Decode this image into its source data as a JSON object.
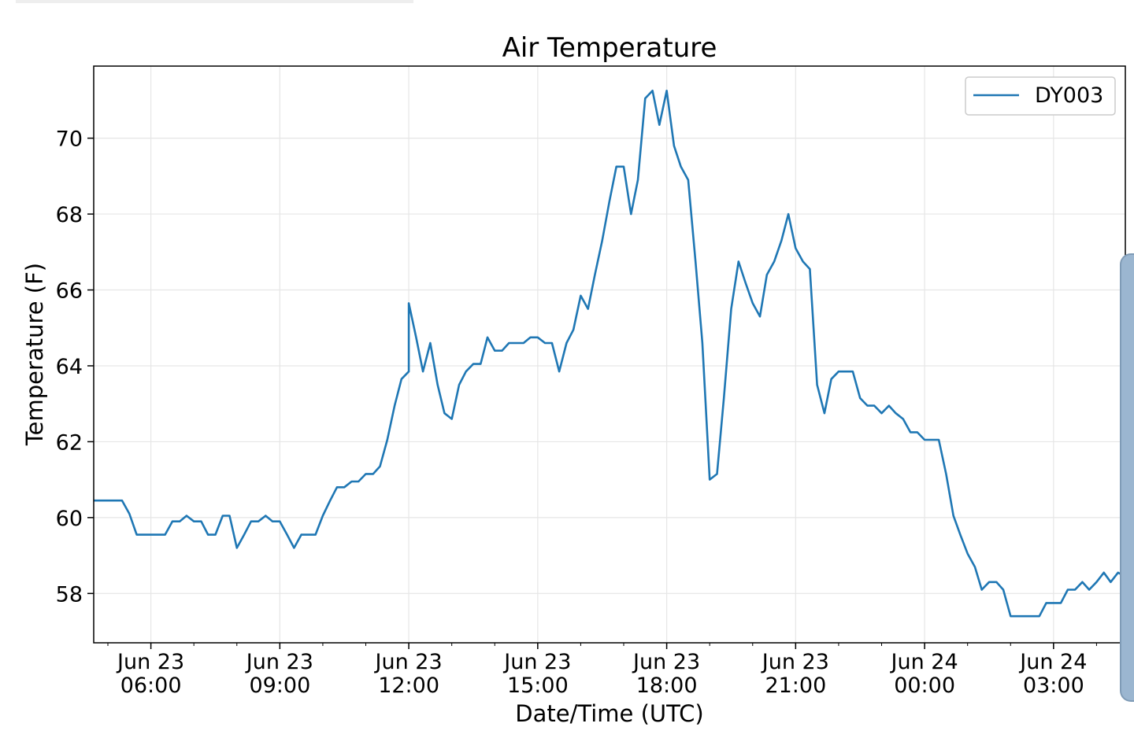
{
  "chart_data": {
    "type": "line",
    "title": "Air Temperature",
    "xlabel": "Date/Time (UTC)",
    "ylabel": "Temperature (F)",
    "ylim": [
      56.7,
      71.9
    ],
    "xlim_hours": [
      4.67,
      28.67
    ],
    "grid": true,
    "legend_position": "top-right",
    "y_ticks": [
      58,
      60,
      62,
      64,
      66,
      68,
      70
    ],
    "x_ticks": [
      {
        "hour": 6,
        "line1": "Jun 23",
        "line2": "06:00"
      },
      {
        "hour": 9,
        "line1": "Jun 23",
        "line2": "09:00"
      },
      {
        "hour": 12,
        "line1": "Jun 23",
        "line2": "12:00"
      },
      {
        "hour": 15,
        "line1": "Jun 23",
        "line2": "15:00"
      },
      {
        "hour": 18,
        "line1": "Jun 23",
        "line2": "18:00"
      },
      {
        "hour": 21,
        "line1": "Jun 23",
        "line2": "21:00"
      },
      {
        "hour": 24,
        "line1": "Jun 24",
        "line2": "00:00"
      },
      {
        "hour": 27,
        "line1": "Jun 24",
        "line2": "03:00"
      }
    ],
    "series": [
      {
        "name": "DY003",
        "color": "#1f77b4",
        "points": [
          [
            4.67,
            60.45
          ],
          [
            5.33,
            60.45
          ],
          [
            5.5,
            60.1
          ],
          [
            5.67,
            59.55
          ],
          [
            6.17,
            59.55
          ],
          [
            6.33,
            59.55
          ],
          [
            6.5,
            59.9
          ],
          [
            6.67,
            59.9
          ],
          [
            6.83,
            60.05
          ],
          [
            7.0,
            59.9
          ],
          [
            7.17,
            59.9
          ],
          [
            7.33,
            59.55
          ],
          [
            7.5,
            59.55
          ],
          [
            7.67,
            60.05
          ],
          [
            7.83,
            60.05
          ],
          [
            8.0,
            59.2
          ],
          [
            8.17,
            59.55
          ],
          [
            8.33,
            59.9
          ],
          [
            8.5,
            59.9
          ],
          [
            8.67,
            60.05
          ],
          [
            8.83,
            59.9
          ],
          [
            9.0,
            59.9
          ],
          [
            9.17,
            59.55
          ],
          [
            9.33,
            59.2
          ],
          [
            9.5,
            59.55
          ],
          [
            9.67,
            59.55
          ],
          [
            9.83,
            59.55
          ],
          [
            10.0,
            60.05
          ],
          [
            10.17,
            60.45
          ],
          [
            10.33,
            60.8
          ],
          [
            10.5,
            60.8
          ],
          [
            10.67,
            60.95
          ],
          [
            10.83,
            60.95
          ],
          [
            11.0,
            61.15
          ],
          [
            11.17,
            61.15
          ],
          [
            11.33,
            61.35
          ],
          [
            11.5,
            62.05
          ],
          [
            11.67,
            62.95
          ],
          [
            11.83,
            63.65
          ],
          [
            12.0,
            63.85
          ],
          [
            12.0,
            65.65
          ],
          [
            12.17,
            64.75
          ],
          [
            12.33,
            63.85
          ],
          [
            12.5,
            64.6
          ],
          [
            12.67,
            63.5
          ],
          [
            12.83,
            62.75
          ],
          [
            13.0,
            62.6
          ],
          [
            13.17,
            63.5
          ],
          [
            13.33,
            63.85
          ],
          [
            13.5,
            64.05
          ],
          [
            13.67,
            64.05
          ],
          [
            13.83,
            64.75
          ],
          [
            14.0,
            64.4
          ],
          [
            14.17,
            64.4
          ],
          [
            14.33,
            64.6
          ],
          [
            14.5,
            64.6
          ],
          [
            14.67,
            64.6
          ],
          [
            14.83,
            64.75
          ],
          [
            15.0,
            64.75
          ],
          [
            15.17,
            64.6
          ],
          [
            15.33,
            64.6
          ],
          [
            15.5,
            63.85
          ],
          [
            15.67,
            64.6
          ],
          [
            15.83,
            64.95
          ],
          [
            16.0,
            65.85
          ],
          [
            16.17,
            65.5
          ],
          [
            16.33,
            66.4
          ],
          [
            16.5,
            67.3
          ],
          [
            16.67,
            68.35
          ],
          [
            16.83,
            69.25
          ],
          [
            17.0,
            69.25
          ],
          [
            17.17,
            68.0
          ],
          [
            17.33,
            68.9
          ],
          [
            17.5,
            71.05
          ],
          [
            17.67,
            71.25
          ],
          [
            17.83,
            70.35
          ],
          [
            18.0,
            71.25
          ],
          [
            18.17,
            69.8
          ],
          [
            18.33,
            69.25
          ],
          [
            18.5,
            68.9
          ],
          [
            18.67,
            66.75
          ],
          [
            18.83,
            64.6
          ],
          [
            19.0,
            61.0
          ],
          [
            19.17,
            61.15
          ],
          [
            19.33,
            63.15
          ],
          [
            19.5,
            65.5
          ],
          [
            19.67,
            66.75
          ],
          [
            19.83,
            66.2
          ],
          [
            20.0,
            65.65
          ],
          [
            20.17,
            65.3
          ],
          [
            20.33,
            66.4
          ],
          [
            20.5,
            66.75
          ],
          [
            20.67,
            67.3
          ],
          [
            20.83,
            68.0
          ],
          [
            21.0,
            67.1
          ],
          [
            21.17,
            66.75
          ],
          [
            21.33,
            66.55
          ],
          [
            21.5,
            63.5
          ],
          [
            21.67,
            62.75
          ],
          [
            21.83,
            63.65
          ],
          [
            22.0,
            63.85
          ],
          [
            22.17,
            63.85
          ],
          [
            22.33,
            63.85
          ],
          [
            22.5,
            63.15
          ],
          [
            22.67,
            62.95
          ],
          [
            22.83,
            62.95
          ],
          [
            23.0,
            62.75
          ],
          [
            23.17,
            62.95
          ],
          [
            23.33,
            62.75
          ],
          [
            23.5,
            62.6
          ],
          [
            23.67,
            62.25
          ],
          [
            23.83,
            62.25
          ],
          [
            24.0,
            62.05
          ],
          [
            24.17,
            62.05
          ],
          [
            24.33,
            62.05
          ],
          [
            24.5,
            61.15
          ],
          [
            24.67,
            60.05
          ],
          [
            24.83,
            59.55
          ],
          [
            25.0,
            59.05
          ],
          [
            25.17,
            58.7
          ],
          [
            25.33,
            58.1
          ],
          [
            25.5,
            58.3
          ],
          [
            25.67,
            58.3
          ],
          [
            25.83,
            58.1
          ],
          [
            26.0,
            57.4
          ],
          [
            26.17,
            57.4
          ],
          [
            26.33,
            57.4
          ],
          [
            26.5,
            57.4
          ],
          [
            26.67,
            57.4
          ],
          [
            26.83,
            57.75
          ],
          [
            27.0,
            57.75
          ],
          [
            27.17,
            57.75
          ],
          [
            27.33,
            58.1
          ],
          [
            27.5,
            58.1
          ],
          [
            27.67,
            58.3
          ],
          [
            27.83,
            58.1
          ],
          [
            28.0,
            58.3
          ],
          [
            28.17,
            58.55
          ],
          [
            28.33,
            58.3
          ],
          [
            28.5,
            58.55
          ],
          [
            28.67,
            58.45
          ]
        ]
      }
    ]
  }
}
